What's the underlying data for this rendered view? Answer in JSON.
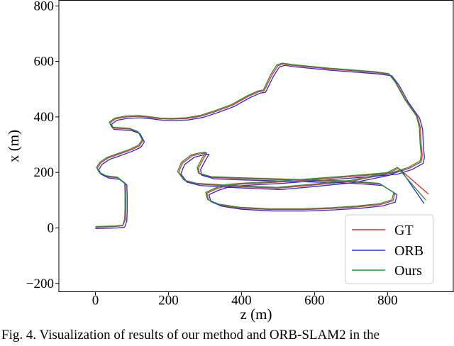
{
  "chart_data": {
    "type": "line",
    "xlabel": "z (m)",
    "ylabel": "x (m)",
    "xlim": [
      -100,
      980
    ],
    "ylim": [
      -230,
      820
    ],
    "xticks": [
      "0",
      "200",
      "400",
      "600",
      "800"
    ],
    "yticks": [
      "−200",
      "0",
      "200",
      "400",
      "600",
      "800"
    ],
    "grid": false,
    "legend_position": "bottom-right",
    "series": [
      {
        "name": "GT",
        "color": "#e8282a",
        "points": [
          [
            0,
            3
          ],
          [
            55,
            5
          ],
          [
            75,
            8
          ],
          [
            82,
            30
          ],
          [
            83,
            70
          ],
          [
            83,
            120
          ],
          [
            82,
            160
          ],
          [
            62,
            180
          ],
          [
            32,
            185
          ],
          [
            12,
            198
          ],
          [
            5,
            215
          ],
          [
            15,
            235
          ],
          [
            35,
            252
          ],
          [
            63,
            265
          ],
          [
            95,
            280
          ],
          [
            120,
            295
          ],
          [
            130,
            315
          ],
          [
            118,
            345
          ],
          [
            95,
            356
          ],
          [
            47,
            360
          ],
          [
            40,
            378
          ],
          [
            55,
            393
          ],
          [
            85,
            400
          ],
          [
            120,
            402
          ],
          [
            150,
            398
          ],
          [
            180,
            393
          ],
          [
            210,
            392
          ],
          [
            250,
            394
          ],
          [
            290,
            403
          ],
          [
            330,
            420
          ],
          [
            375,
            442
          ],
          [
            420,
            475
          ],
          [
            448,
            491
          ],
          [
            462,
            494
          ],
          [
            483,
            550
          ],
          [
            500,
            585
          ],
          [
            515,
            591
          ],
          [
            540,
            586
          ],
          [
            640,
            573
          ],
          [
            770,
            560
          ],
          [
            806,
            553
          ],
          [
            825,
            520
          ],
          [
            850,
            460
          ],
          [
            882,
            400
          ],
          [
            890,
            360
          ],
          [
            892,
            300
          ],
          [
            895,
            260
          ],
          [
            892,
            238
          ],
          [
            860,
            215
          ],
          [
            820,
            198
          ],
          [
            700,
            185
          ],
          [
            600,
            175
          ],
          [
            500,
            165
          ],
          [
            400,
            158
          ],
          [
            360,
            153
          ],
          [
            330,
            140
          ],
          [
            305,
            125
          ],
          [
            310,
            100
          ],
          [
            340,
            83
          ],
          [
            395,
            72
          ],
          [
            480,
            66
          ],
          [
            570,
            66
          ],
          [
            650,
            70
          ],
          [
            720,
            76
          ],
          [
            780,
            84
          ],
          [
            815,
            98
          ],
          [
            820,
            125
          ],
          [
            780,
            158
          ],
          [
            700,
            166
          ],
          [
            600,
            170
          ],
          [
            500,
            174
          ],
          [
            400,
            178
          ],
          [
            320,
            182
          ],
          [
            285,
            195
          ],
          [
            282,
            215
          ],
          [
            295,
            248
          ],
          [
            305,
            270
          ],
          [
            290,
            268
          ],
          [
            265,
            260
          ],
          [
            238,
            233
          ],
          [
            228,
            200
          ],
          [
            245,
            170
          ],
          [
            280,
            158
          ],
          [
            380,
            150
          ],
          [
            500,
            143
          ],
          [
            600,
            155
          ],
          [
            700,
            168
          ],
          [
            800,
            195
          ],
          [
            830,
            215
          ],
          [
            912,
            122
          ]
        ]
      },
      {
        "name": "ORB",
        "color": "#2828e6",
        "points": [
          [
            0,
            -2
          ],
          [
            60,
            0
          ],
          [
            80,
            3
          ],
          [
            86,
            25
          ],
          [
            87,
            65
          ],
          [
            87,
            115
          ],
          [
            86,
            155
          ],
          [
            66,
            175
          ],
          [
            36,
            180
          ],
          [
            16,
            193
          ],
          [
            9,
            210
          ],
          [
            19,
            230
          ],
          [
            39,
            247
          ],
          [
            67,
            260
          ],
          [
            99,
            275
          ],
          [
            124,
            290
          ],
          [
            134,
            310
          ],
          [
            122,
            340
          ],
          [
            99,
            351
          ],
          [
            51,
            355
          ],
          [
            44,
            373
          ],
          [
            59,
            388
          ],
          [
            89,
            395
          ],
          [
            124,
            397
          ],
          [
            154,
            393
          ],
          [
            184,
            388
          ],
          [
            214,
            387
          ],
          [
            254,
            389
          ],
          [
            294,
            398
          ],
          [
            334,
            415
          ],
          [
            379,
            437
          ],
          [
            424,
            470
          ],
          [
            452,
            486
          ],
          [
            466,
            489
          ],
          [
            487,
            545
          ],
          [
            504,
            580
          ],
          [
            519,
            586
          ],
          [
            544,
            581
          ],
          [
            644,
            568
          ],
          [
            774,
            555
          ],
          [
            812,
            548
          ],
          [
            831,
            515
          ],
          [
            856,
            455
          ],
          [
            888,
            395
          ],
          [
            896,
            355
          ],
          [
            898,
            295
          ],
          [
            901,
            255
          ],
          [
            898,
            233
          ],
          [
            866,
            210
          ],
          [
            826,
            193
          ],
          [
            706,
            180
          ],
          [
            606,
            170
          ],
          [
            506,
            160
          ],
          [
            406,
            153
          ],
          [
            366,
            148
          ],
          [
            336,
            135
          ],
          [
            311,
            120
          ],
          [
            316,
            95
          ],
          [
            346,
            78
          ],
          [
            401,
            67
          ],
          [
            486,
            61
          ],
          [
            576,
            61
          ],
          [
            656,
            65
          ],
          [
            726,
            71
          ],
          [
            786,
            79
          ],
          [
            821,
            93
          ],
          [
            826,
            120
          ],
          [
            786,
            153
          ],
          [
            706,
            161
          ],
          [
            606,
            165
          ],
          [
            506,
            169
          ],
          [
            406,
            173
          ],
          [
            326,
            177
          ],
          [
            291,
            190
          ],
          [
            288,
            210
          ],
          [
            301,
            243
          ],
          [
            311,
            265
          ],
          [
            296,
            263
          ],
          [
            271,
            255
          ],
          [
            244,
            228
          ],
          [
            234,
            195
          ],
          [
            251,
            165
          ],
          [
            286,
            153
          ],
          [
            386,
            145
          ],
          [
            506,
            138
          ],
          [
            606,
            150
          ],
          [
            706,
            163
          ],
          [
            806,
            190
          ],
          [
            836,
            210
          ],
          [
            900,
            88
          ]
        ]
      },
      {
        "name": "Ours",
        "color": "#22962c",
        "points": [
          [
            0,
            5
          ],
          [
            55,
            7
          ],
          [
            75,
            10
          ],
          [
            80,
            33
          ],
          [
            81,
            73
          ],
          [
            81,
            123
          ],
          [
            80,
            163
          ],
          [
            60,
            183
          ],
          [
            30,
            188
          ],
          [
            10,
            201
          ],
          [
            3,
            218
          ],
          [
            13,
            238
          ],
          [
            33,
            255
          ],
          [
            61,
            268
          ],
          [
            93,
            283
          ],
          [
            118,
            298
          ],
          [
            128,
            318
          ],
          [
            116,
            348
          ],
          [
            93,
            359
          ],
          [
            45,
            363
          ],
          [
            38,
            381
          ],
          [
            53,
            396
          ],
          [
            83,
            403
          ],
          [
            118,
            405
          ],
          [
            148,
            401
          ],
          [
            178,
            396
          ],
          [
            208,
            395
          ],
          [
            248,
            397
          ],
          [
            288,
            406
          ],
          [
            328,
            423
          ],
          [
            373,
            445
          ],
          [
            418,
            478
          ],
          [
            446,
            494
          ],
          [
            460,
            497
          ],
          [
            480,
            553
          ],
          [
            497,
            588
          ],
          [
            512,
            594
          ],
          [
            537,
            589
          ],
          [
            637,
            576
          ],
          [
            767,
            563
          ],
          [
            803,
            556
          ],
          [
            822,
            523
          ],
          [
            847,
            463
          ],
          [
            879,
            403
          ],
          [
            887,
            363
          ],
          [
            889,
            303
          ],
          [
            892,
            263
          ],
          [
            889,
            241
          ],
          [
            857,
            218
          ],
          [
            817,
            201
          ],
          [
            697,
            188
          ],
          [
            597,
            178
          ],
          [
            497,
            168
          ],
          [
            397,
            161
          ],
          [
            357,
            156
          ],
          [
            327,
            143
          ],
          [
            302,
            128
          ],
          [
            307,
            103
          ],
          [
            337,
            86
          ],
          [
            392,
            75
          ],
          [
            477,
            69
          ],
          [
            567,
            69
          ],
          [
            647,
            73
          ],
          [
            717,
            79
          ],
          [
            777,
            87
          ],
          [
            812,
            101
          ],
          [
            817,
            128
          ],
          [
            777,
            161
          ],
          [
            697,
            169
          ],
          [
            597,
            173
          ],
          [
            497,
            177
          ],
          [
            397,
            181
          ],
          [
            317,
            185
          ],
          [
            282,
            198
          ],
          [
            279,
            218
          ],
          [
            292,
            251
          ],
          [
            302,
            273
          ],
          [
            287,
            271
          ],
          [
            262,
            263
          ],
          [
            235,
            236
          ],
          [
            225,
            203
          ],
          [
            242,
            173
          ],
          [
            277,
            161
          ],
          [
            377,
            153
          ],
          [
            497,
            146
          ],
          [
            597,
            158
          ],
          [
            697,
            171
          ],
          [
            797,
            198
          ],
          [
            827,
            218
          ],
          [
            905,
            100
          ]
        ]
      }
    ]
  },
  "caption": "Fig. 4.    Visualization of results of our method and ORB-SLAM2 in the"
}
